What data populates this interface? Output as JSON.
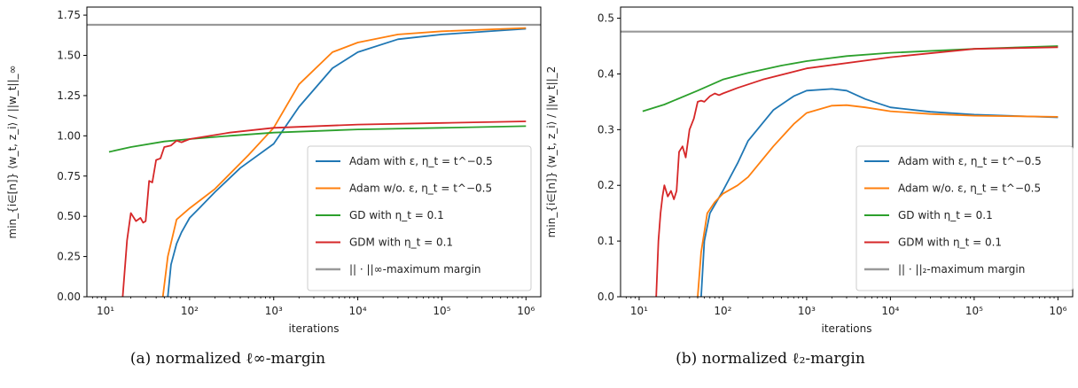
{
  "chart_data": [
    {
      "type": "line",
      "xlabel": "iterations",
      "ylabel": "min_{i∈[n]} ⟨w_t, z_i⟩ / ||w_t||_∞",
      "x_scale": "log",
      "xlim": [
        6,
        1500000
      ],
      "ylim": [
        0,
        1.8
      ],
      "x_ticks": [
        10,
        100,
        1000,
        10000,
        100000,
        1000000
      ],
      "x_tick_labels": [
        "10¹",
        "10²",
        "10³",
        "10⁴",
        "10⁵",
        "10⁶"
      ],
      "y_ticks": [
        0,
        0.25,
        0.5,
        0.75,
        1.0,
        1.25,
        1.5,
        1.75
      ],
      "y_tick_labels": [
        "0.00",
        "0.25",
        "0.50",
        "0.75",
        "1.00",
        "1.25",
        "1.50",
        "1.75"
      ],
      "caption": "(a) normalized ℓ∞-margin",
      "legend_position": "lower-right",
      "series": [
        {
          "name": "Adam with ε, η_t = t^−0.5",
          "color": "#1f77b4",
          "x": [
            55,
            60,
            70,
            80,
            100,
            130,
            200,
            400,
            1000,
            2000,
            5000,
            10000,
            30000,
            100000,
            1000000
          ],
          "y": [
            0.0,
            0.2,
            0.33,
            0.4,
            0.49,
            0.55,
            0.65,
            0.8,
            0.95,
            1.18,
            1.42,
            1.52,
            1.6,
            1.63,
            1.665
          ]
        },
        {
          "name": "Adam w/o. ε, η_t = t^−0.5",
          "color": "#ff7f0e",
          "x": [
            48,
            55,
            70,
            100,
            150,
            200,
            500,
            1000,
            2000,
            5000,
            10000,
            30000,
            100000,
            1000000
          ],
          "y": [
            0.0,
            0.25,
            0.48,
            0.55,
            0.62,
            0.67,
            0.88,
            1.05,
            1.32,
            1.52,
            1.58,
            1.63,
            1.65,
            1.67
          ]
        },
        {
          "name": "GD with η_t = 0.1",
          "color": "#2ca02c",
          "x": [
            11,
            20,
            50,
            100,
            300,
            1000,
            10000,
            100000,
            1000000
          ],
          "y": [
            0.9,
            0.93,
            0.965,
            0.98,
            1.0,
            1.02,
            1.04,
            1.05,
            1.06
          ]
        },
        {
          "name": "GDM with η_t = 0.1",
          "color": "#d62728",
          "x": [
            16,
            18,
            20,
            23,
            26,
            28,
            30,
            33,
            36,
            40,
            45,
            50,
            60,
            70,
            80,
            100,
            300,
            1000,
            10000,
            100000,
            1000000
          ],
          "y": [
            0.0,
            0.35,
            0.52,
            0.47,
            0.49,
            0.46,
            0.47,
            0.72,
            0.71,
            0.85,
            0.86,
            0.93,
            0.94,
            0.97,
            0.96,
            0.98,
            1.02,
            1.05,
            1.07,
            1.08,
            1.09
          ]
        },
        {
          "name": "|| · ||∞-maximum margin",
          "color": "#999999",
          "x": [
            6,
            1500000
          ],
          "y": [
            1.69,
            1.69
          ]
        }
      ]
    },
    {
      "type": "line",
      "xlabel": "iterations",
      "ylabel": "min_{i∈[n]} ⟨w_t, z_i⟩ / ||w_t||_2",
      "x_scale": "log",
      "xlim": [
        6,
        1500000
      ],
      "ylim": [
        0,
        0.52
      ],
      "x_ticks": [
        10,
        100,
        1000,
        10000,
        100000,
        1000000
      ],
      "x_tick_labels": [
        "10¹",
        "10²",
        "10³",
        "10⁴",
        "10⁵",
        "10⁶"
      ],
      "y_ticks": [
        0,
        0.1,
        0.2,
        0.3,
        0.4,
        0.5
      ],
      "y_tick_labels": [
        "0.0",
        "0.1",
        "0.2",
        "0.3",
        "0.4",
        "0.5"
      ],
      "caption": "(b) normalized ℓ₂-margin",
      "legend_position": "lower-right",
      "series": [
        {
          "name": "Adam with ε, η_t = t^−0.5",
          "color": "#1f77b4",
          "x": [
            55,
            60,
            70,
            100,
            150,
            200,
            400,
            700,
            1000,
            2000,
            3000,
            5000,
            10000,
            30000,
            100000,
            1000000
          ],
          "y": [
            0.0,
            0.1,
            0.15,
            0.19,
            0.24,
            0.28,
            0.335,
            0.36,
            0.37,
            0.373,
            0.37,
            0.355,
            0.34,
            0.332,
            0.327,
            0.322
          ]
        },
        {
          "name": "Adam w/o. ε, η_t = t^−0.5",
          "color": "#ff7f0e",
          "x": [
            50,
            55,
            65,
            80,
            100,
            150,
            200,
            400,
            700,
            1000,
            2000,
            3000,
            5000,
            10000,
            30000,
            100000,
            1000000
          ],
          "y": [
            0.0,
            0.08,
            0.15,
            0.17,
            0.185,
            0.2,
            0.215,
            0.27,
            0.31,
            0.33,
            0.343,
            0.344,
            0.34,
            0.333,
            0.328,
            0.325,
            0.323
          ]
        },
        {
          "name": "GD with η_t = 0.1",
          "color": "#2ca02c",
          "x": [
            11,
            20,
            50,
            100,
            200,
            500,
            1000,
            3000,
            10000,
            100000,
            1000000
          ],
          "y": [
            0.333,
            0.345,
            0.37,
            0.39,
            0.402,
            0.415,
            0.423,
            0.432,
            0.438,
            0.445,
            0.45
          ]
        },
        {
          "name": "GDM with η_t = 0.1",
          "color": "#d62728",
          "x": [
            16,
            17,
            18,
            19,
            20,
            22,
            24,
            26,
            28,
            30,
            33,
            36,
            40,
            45,
            50,
            55,
            60,
            70,
            80,
            90,
            100,
            150,
            300,
            1000,
            10000,
            100000,
            1000000
          ],
          "y": [
            0.0,
            0.1,
            0.15,
            0.18,
            0.2,
            0.18,
            0.19,
            0.175,
            0.19,
            0.26,
            0.27,
            0.25,
            0.3,
            0.32,
            0.35,
            0.352,
            0.35,
            0.36,
            0.365,
            0.362,
            0.365,
            0.375,
            0.39,
            0.41,
            0.43,
            0.445,
            0.448
          ]
        },
        {
          "name": "|| · ||₂-maximum margin",
          "color": "#999999",
          "x": [
            6,
            1500000
          ],
          "y": [
            0.476,
            0.476
          ]
        }
      ]
    }
  ]
}
